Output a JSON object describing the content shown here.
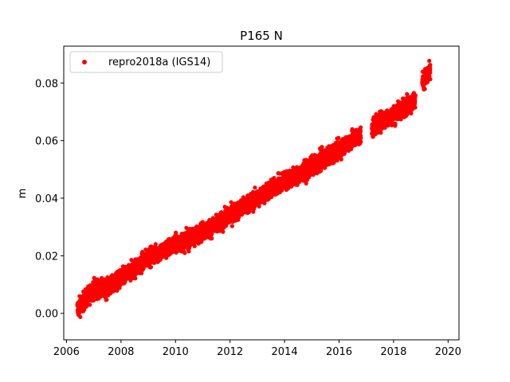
{
  "chart_data": {
    "type": "scatter",
    "title": "P165 N",
    "xlabel": "",
    "ylabel": "m",
    "xlim": [
      2005.9,
      2020.4
    ],
    "ylim": [
      -0.0092,
      0.0928
    ],
    "xticks": [
      2006,
      2008,
      2010,
      2012,
      2014,
      2016,
      2018,
      2020
    ],
    "xtick_labels": [
      "2006",
      "2008",
      "2010",
      "2012",
      "2014",
      "2016",
      "2018",
      "2020"
    ],
    "yticks": [
      0.0,
      0.02,
      0.04,
      0.06,
      0.08
    ],
    "ytick_labels": [
      "0.00",
      "0.02",
      "0.04",
      "0.06",
      "0.08"
    ],
    "legend_position": "top-left",
    "grid": false,
    "series": [
      {
        "name": "repro2018a (IGS14)",
        "color": "#ff0000",
        "marker": "dot",
        "trend_points": [
          [
            2006.4,
            0.0015
          ],
          [
            2007.0,
            0.0085
          ],
          [
            2007.5,
            0.0085
          ],
          [
            2008.0,
            0.012
          ],
          [
            2008.5,
            0.0155
          ],
          [
            2009.0,
            0.0195
          ],
          [
            2009.5,
            0.0215
          ],
          [
            2010.0,
            0.024
          ],
          [
            2010.5,
            0.0255
          ],
          [
            2011.0,
            0.0285
          ],
          [
            2011.5,
            0.0305
          ],
          [
            2012.0,
            0.034
          ],
          [
            2012.5,
            0.037
          ],
          [
            2013.0,
            0.04
          ],
          [
            2013.5,
            0.043
          ],
          [
            2014.0,
            0.046
          ],
          [
            2014.5,
            0.048
          ],
          [
            2015.0,
            0.051
          ],
          [
            2015.5,
            0.054
          ],
          [
            2016.0,
            0.057
          ],
          [
            2016.5,
            0.0605
          ],
          [
            2017.0,
            0.0625
          ],
          [
            2017.5,
            0.0665
          ],
          [
            2018.0,
            0.069
          ],
          [
            2018.5,
            0.0725
          ],
          [
            2018.75,
            0.0735
          ],
          [
            2019.1,
            0.081
          ],
          [
            2019.35,
            0.084
          ]
        ],
        "gaps": [
          [
            2016.8,
            2017.2
          ],
          [
            2018.8,
            2019.05
          ]
        ],
        "scatter_amplitude": 0.0028
      }
    ]
  }
}
